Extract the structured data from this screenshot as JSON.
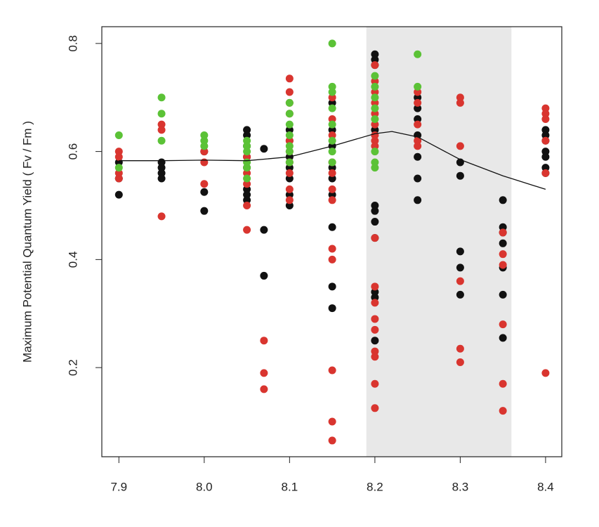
{
  "chart_data": {
    "type": "scatter",
    "y_label": "Maximum Potential Quantum Yield ( Fv / Fm )",
    "xlim": [
      7.88,
      8.419
    ],
    "ylim": [
      0.035,
      0.831
    ],
    "xticks": [
      7.9,
      {
        "value": 8,
        "label": "8.0"
      },
      8.1,
      8.2,
      8.3,
      8.4
    ],
    "yticks": [
      0.2,
      0.4,
      0.6,
      0.8
    ],
    "shade": [
      8.19,
      8.36
    ],
    "shade_color": "#e8e8e8",
    "series": [
      {
        "color": "#111111",
        "x": [
          7.9,
          7.9,
          7.9,
          7.95,
          7.95,
          7.95,
          7.95,
          8.0,
          8.0,
          8.0,
          8.05,
          8.05,
          8.05,
          8.05,
          8.05,
          8.05,
          8.05,
          8.05,
          8.07,
          8.07,
          8.07,
          8.1,
          8.1,
          8.1,
          8.1,
          8.1,
          8.1,
          8.1,
          8.15,
          8.15,
          8.15,
          8.15,
          8.15,
          8.15,
          8.15,
          8.15,
          8.15,
          8.2,
          8.2,
          8.2,
          8.2,
          8.2,
          8.2,
          8.2,
          8.2,
          8.2,
          8.2,
          8.2,
          8.25,
          8.25,
          8.25,
          8.25,
          8.25,
          8.25,
          8.25,
          8.3,
          8.3,
          8.3,
          8.3,
          8.3,
          8.35,
          8.35,
          8.35,
          8.35,
          8.35,
          8.35,
          8.35,
          8.4,
          8.4,
          8.4,
          8.4,
          8.4,
          8.4,
          8.4
        ],
        "y": [
          0.58,
          0.55,
          0.52,
          0.58,
          0.57,
          0.56,
          0.55,
          0.6,
          0.525,
          0.49,
          0.64,
          0.63,
          0.61,
          0.59,
          0.57,
          0.53,
          0.52,
          0.51,
          0.605,
          0.455,
          0.37,
          0.64,
          0.62,
          0.59,
          0.57,
          0.55,
          0.52,
          0.5,
          0.69,
          0.64,
          0.61,
          0.57,
          0.55,
          0.52,
          0.46,
          0.35,
          0.31,
          0.78,
          0.77,
          0.76,
          0.64,
          0.5,
          0.49,
          0.47,
          0.44,
          0.34,
          0.33,
          0.25,
          0.7,
          0.68,
          0.66,
          0.63,
          0.59,
          0.55,
          0.51,
          0.58,
          0.555,
          0.415,
          0.385,
          0.335,
          0.51,
          0.46,
          0.45,
          0.43,
          0.385,
          0.335,
          0.255,
          0.64,
          0.63,
          0.62,
          0.6,
          0.59,
          0.57,
          0.56
        ]
      },
      {
        "color": "#d9352f",
        "x": [
          7.9,
          7.9,
          7.9,
          7.9,
          7.95,
          7.95,
          7.95,
          8.0,
          8.0,
          8.0,
          8.05,
          8.05,
          8.05,
          8.05,
          8.05,
          8.07,
          8.07,
          8.07,
          8.1,
          8.1,
          8.1,
          8.1,
          8.1,
          8.1,
          8.1,
          8.1,
          8.1,
          8.1,
          8.15,
          8.15,
          8.15,
          8.15,
          8.15,
          8.15,
          8.15,
          8.15,
          8.15,
          8.15,
          8.15,
          8.15,
          8.2,
          8.2,
          8.2,
          8.2,
          8.2,
          8.2,
          8.2,
          8.2,
          8.2,
          8.2,
          8.2,
          8.2,
          8.2,
          8.2,
          8.2,
          8.2,
          8.2,
          8.2,
          8.25,
          8.25,
          8.25,
          8.25,
          8.25,
          8.3,
          8.3,
          8.3,
          8.3,
          8.3,
          8.3,
          8.35,
          8.35,
          8.35,
          8.35,
          8.35,
          8.35,
          8.4,
          8.4,
          8.4,
          8.4,
          8.4,
          8.4
        ],
        "y": [
          0.6,
          0.59,
          0.56,
          0.55,
          0.65,
          0.64,
          0.48,
          0.6,
          0.58,
          0.54,
          0.59,
          0.56,
          0.54,
          0.5,
          0.455,
          0.25,
          0.19,
          0.16,
          0.735,
          0.71,
          0.69,
          0.67,
          0.62,
          0.6,
          0.58,
          0.56,
          0.53,
          0.51,
          0.7,
          0.66,
          0.63,
          0.58,
          0.56,
          0.53,
          0.51,
          0.42,
          0.4,
          0.195,
          0.1,
          0.065,
          0.76,
          0.73,
          0.71,
          0.69,
          0.67,
          0.65,
          0.63,
          0.62,
          0.61,
          0.44,
          0.35,
          0.32,
          0.29,
          0.27,
          0.23,
          0.22,
          0.17,
          0.125,
          0.71,
          0.69,
          0.65,
          0.62,
          0.61,
          0.7,
          0.69,
          0.61,
          0.36,
          0.235,
          0.21,
          0.45,
          0.41,
          0.39,
          0.28,
          0.17,
          0.12,
          0.68,
          0.67,
          0.66,
          0.62,
          0.56,
          0.19
        ]
      },
      {
        "color": "#5bc236",
        "x": [
          7.9,
          7.9,
          7.95,
          7.95,
          7.95,
          8.0,
          8.0,
          8.0,
          8.05,
          8.05,
          8.05,
          8.05,
          8.05,
          8.05,
          8.1,
          8.1,
          8.1,
          8.1,
          8.1,
          8.1,
          8.1,
          8.15,
          8.15,
          8.15,
          8.15,
          8.15,
          8.15,
          8.15,
          8.15,
          8.2,
          8.2,
          8.2,
          8.2,
          8.2,
          8.2,
          8.2,
          8.2,
          8.25,
          8.25
        ],
        "y": [
          0.63,
          0.57,
          0.7,
          0.67,
          0.62,
          0.63,
          0.62,
          0.61,
          0.62,
          0.61,
          0.6,
          0.58,
          0.57,
          0.55,
          0.69,
          0.67,
          0.65,
          0.63,
          0.61,
          0.6,
          0.58,
          0.8,
          0.72,
          0.71,
          0.68,
          0.65,
          0.62,
          0.6,
          0.58,
          0.74,
          0.72,
          0.7,
          0.68,
          0.66,
          0.6,
          0.58,
          0.57,
          0.78,
          0.72
        ]
      }
    ],
    "fit": {
      "color": "#111111",
      "x": [
        7.9,
        7.95,
        8.0,
        8.05,
        8.1,
        8.15,
        8.2,
        8.22,
        8.25,
        8.3,
        8.35,
        8.4
      ],
      "y": [
        0.583,
        0.583,
        0.584,
        0.583,
        0.59,
        0.61,
        0.633,
        0.637,
        0.627,
        0.585,
        0.555,
        0.53
      ]
    }
  }
}
